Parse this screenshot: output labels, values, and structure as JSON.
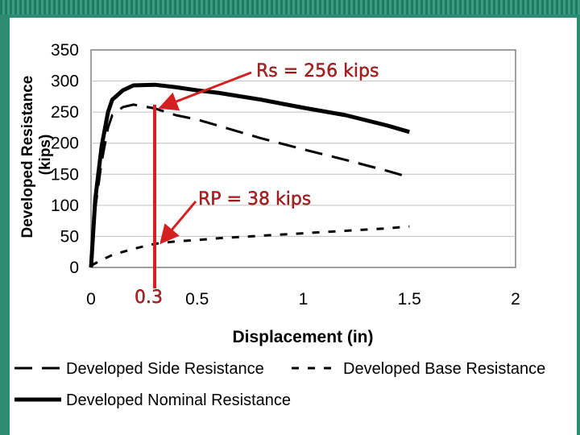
{
  "chart_data": {
    "type": "line",
    "xlabel": "Displacement (in)",
    "ylabel": "Developed Resistance (kips)",
    "xlim": [
      0,
      2
    ],
    "ylim": [
      0,
      350
    ],
    "x_ticks": [
      "0",
      "0.5",
      "1",
      "1.5",
      "2"
    ],
    "y_ticks": [
      "0",
      "50",
      "100",
      "150",
      "200",
      "250",
      "300",
      "350"
    ],
    "grid": "horizontal",
    "legend_position": "bottom",
    "series": [
      {
        "name": "Developed Side Resistance",
        "style": "dashed-long",
        "x": [
          0,
          0.02,
          0.05,
          0.08,
          0.1,
          0.15,
          0.2,
          0.3,
          0.4,
          0.5,
          0.6,
          0.8,
          1.0,
          1.2,
          1.4,
          1.5
        ],
        "y": [
          0,
          95,
          170,
          225,
          245,
          258,
          262,
          256,
          245,
          238,
          228,
          208,
          190,
          173,
          155,
          145
        ]
      },
      {
        "name": "Developed Base Resistance",
        "style": "dashed-short",
        "x": [
          0,
          0.05,
          0.1,
          0.2,
          0.3,
          0.4,
          0.5,
          0.6,
          0.8,
          1.0,
          1.2,
          1.4,
          1.5
        ],
        "y": [
          3,
          12,
          20,
          30,
          38,
          42,
          44,
          47,
          51,
          55,
          59,
          63,
          66
        ]
      },
      {
        "name": "Developed Nominal Resistance",
        "style": "solid-thick",
        "x": [
          0,
          0.02,
          0.05,
          0.08,
          0.1,
          0.15,
          0.2,
          0.3,
          0.4,
          0.5,
          0.6,
          0.8,
          1.0,
          1.2,
          1.4,
          1.5
        ],
        "y": [
          0,
          110,
          195,
          250,
          270,
          285,
          293,
          294,
          290,
          285,
          281,
          270,
          257,
          245,
          228,
          218
        ]
      }
    ],
    "annotations": {
      "rs_label": "Rs = 256 kips",
      "rp_label": "RP = 38 kips",
      "marker_label": "0.3",
      "marker_x": 0.3,
      "rs_point": {
        "x": 0.3,
        "y": 256
      },
      "rp_point": {
        "x": 0.3,
        "y": 38
      }
    }
  },
  "colors": {
    "background": "#2b8c73",
    "annotation": "#d42020",
    "plot_border": "#808080",
    "gridline": "#c0c0c0"
  }
}
